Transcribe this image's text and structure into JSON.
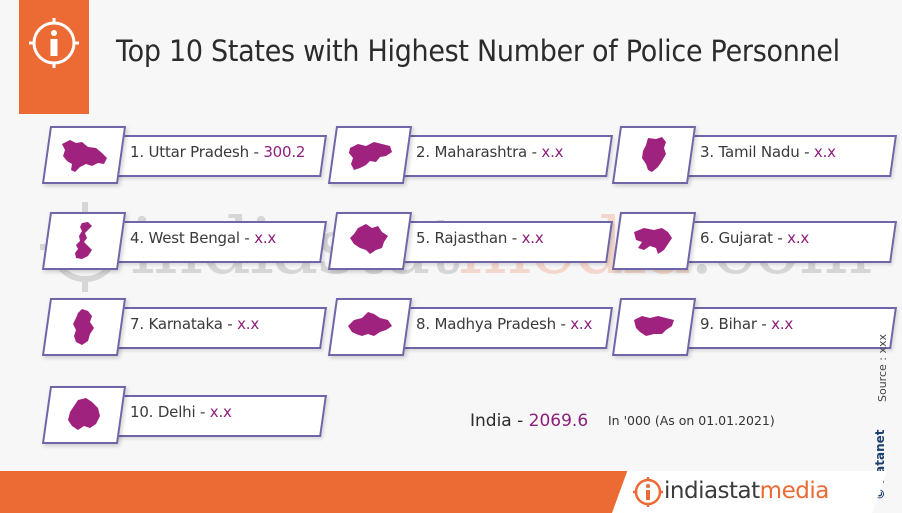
{
  "header": {
    "title": "Top 10 States with Highest Number of Police Personnel",
    "icon": "info-icon"
  },
  "watermark": {
    "part1": "indiastat",
    "part2": "media",
    "part3": ".com"
  },
  "states": [
    {
      "label": "1. Uttar Pradesh - ",
      "value": "300.2",
      "icon": "uttar-pradesh-map-icon"
    },
    {
      "label": "2. Maharashtra - ",
      "value": "x.x",
      "icon": "maharashtra-map-icon"
    },
    {
      "label": "3. Tamil Nadu - ",
      "value": "x.x",
      "icon": "tamil-nadu-map-icon"
    },
    {
      "label": "4. West Bengal - ",
      "value": "x.x",
      "icon": "west-bengal-map-icon"
    },
    {
      "label": "5. Rajasthan - ",
      "value": "x.x",
      "icon": "rajasthan-map-icon"
    },
    {
      "label": "6. Gujarat - ",
      "value": "x.x",
      "icon": "gujarat-map-icon"
    },
    {
      "label": "7. Karnataka - ",
      "value": "x.x",
      "icon": "karnataka-map-icon"
    },
    {
      "label": "8. Madhya Pradesh - ",
      "value": "x.x",
      "icon": "madhya-pradesh-map-icon"
    },
    {
      "label": "9. Bihar - ",
      "value": "x.x",
      "icon": "bihar-map-icon"
    },
    {
      "label": "10. Delhi - ",
      "value": "x.x",
      "icon": "delhi-map-icon"
    }
  ],
  "total": {
    "label": "India  -  ",
    "value": "2069.6",
    "note": "In '000 (As on 01.01.2021)"
  },
  "source": "Source : xxx",
  "credit": "© Datanet",
  "footer": {
    "logo_part1": "indiastat",
    "logo_part2": "media"
  },
  "colors": {
    "accent": "#ec6a33",
    "value": "#8c1f7c",
    "map_fill": "#a0227f",
    "border": "#6e66a8"
  }
}
